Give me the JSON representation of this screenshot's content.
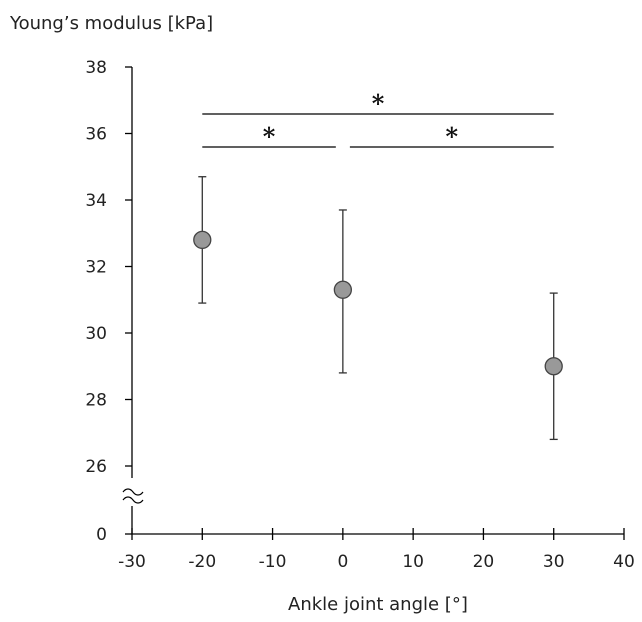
{
  "chart_data": {
    "type": "scatter",
    "ylabel": "Young’s modulus [kPa]",
    "xlabel": "Ankle joint angle [°]",
    "xlim": [
      -30,
      40
    ],
    "xticks": [
      -30,
      -20,
      -10,
      0,
      10,
      20,
      30,
      40
    ],
    "ylim": [
      25,
      38
    ],
    "yticks": [
      26,
      28,
      30,
      32,
      34,
      36,
      38
    ],
    "y_axis_break": {
      "from": 0,
      "to": 26,
      "bottom_label": "0"
    },
    "grid": false,
    "legend": "none",
    "marker_color": "#999999",
    "points": [
      {
        "x": -20,
        "y": 32.8,
        "err_low": 30.9,
        "err_high": 34.7
      },
      {
        "x": 0,
        "y": 31.3,
        "err_low": 28.8,
        "err_high": 33.7
      },
      {
        "x": 30,
        "y": 29.0,
        "err_low": 26.8,
        "err_high": 31.2
      }
    ],
    "significance": [
      {
        "from": -20,
        "to": 30,
        "label": "*"
      },
      {
        "from": -20,
        "to": -1,
        "label": "*"
      },
      {
        "from": 1,
        "to": 30,
        "label": "*"
      }
    ]
  }
}
